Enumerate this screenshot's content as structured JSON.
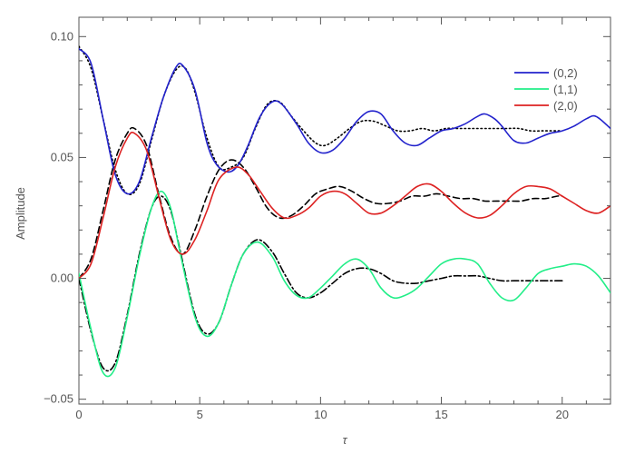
{
  "chart_data": {
    "type": "line",
    "xlabel": "τ",
    "ylabel": "Amplitude",
    "xlim": [
      0,
      22
    ],
    "ylim": [
      -0.052,
      0.108
    ],
    "x_ticks": [
      0,
      5,
      10,
      15,
      20
    ],
    "x_tick_labels": [
      "0",
      "5",
      "10",
      "15",
      "20"
    ],
    "y_ticks": [
      -0.05,
      0.0,
      0.05,
      0.1
    ],
    "y_tick_labels": [
      "−0.05",
      "0.00",
      "0.05",
      "0.10"
    ],
    "grid": false,
    "legend_position": "top-right",
    "series": [
      {
        "name": "(0,2)",
        "color": "#2222cc",
        "style": "solid",
        "points": [
          [
            0,
            0.095
          ],
          [
            0.5,
            0.089
          ],
          [
            1,
            0.066
          ],
          [
            1.5,
            0.043
          ],
          [
            2,
            0.035
          ],
          [
            2.5,
            0.04
          ],
          [
            3,
            0.058
          ],
          [
            3.5,
            0.075
          ],
          [
            4,
            0.087
          ],
          [
            4.3,
            0.088
          ],
          [
            4.8,
            0.078
          ],
          [
            5.3,
            0.056
          ],
          [
            5.7,
            0.047
          ],
          [
            6.2,
            0.044
          ],
          [
            6.6,
            0.047
          ],
          [
            7,
            0.055
          ],
          [
            7.5,
            0.067
          ],
          [
            8,
            0.073
          ],
          [
            8.4,
            0.072
          ],
          [
            9,
            0.064
          ],
          [
            9.5,
            0.056
          ],
          [
            10,
            0.052
          ],
          [
            10.5,
            0.053
          ],
          [
            11,
            0.058
          ],
          [
            11.5,
            0.065
          ],
          [
            12,
            0.069
          ],
          [
            12.5,
            0.068
          ],
          [
            13,
            0.061
          ],
          [
            13.5,
            0.056
          ],
          [
            14,
            0.055
          ],
          [
            14.5,
            0.058
          ],
          [
            15,
            0.061
          ],
          [
            15.5,
            0.062
          ],
          [
            16,
            0.064
          ],
          [
            16.5,
            0.067
          ],
          [
            16.8,
            0.068
          ],
          [
            17.2,
            0.066
          ],
          [
            17.5,
            0.063
          ],
          [
            18,
            0.057
          ],
          [
            18.5,
            0.056
          ],
          [
            19,
            0.058
          ],
          [
            19.5,
            0.06
          ],
          [
            20,
            0.061
          ],
          [
            20.5,
            0.063
          ],
          [
            21,
            0.066
          ],
          [
            21.4,
            0.067
          ],
          [
            22,
            0.062
          ]
        ]
      },
      {
        "name": "(1,1)",
        "color": "#22ee88",
        "style": "solid",
        "points": [
          [
            0,
            0.002
          ],
          [
            0.5,
            -0.021
          ],
          [
            1,
            -0.039
          ],
          [
            1.5,
            -0.037
          ],
          [
            2,
            -0.016
          ],
          [
            2.5,
            0.009
          ],
          [
            3,
            0.029
          ],
          [
            3.4,
            0.036
          ],
          [
            3.8,
            0.029
          ],
          [
            4.2,
            0.01
          ],
          [
            4.8,
            -0.016
          ],
          [
            5.3,
            -0.024
          ],
          [
            5.8,
            -0.018
          ],
          [
            6.3,
            -0.003
          ],
          [
            6.8,
            0.01
          ],
          [
            7.4,
            0.015
          ],
          [
            8,
            0.009
          ],
          [
            8.5,
            -0.001
          ],
          [
            9,
            -0.007
          ],
          [
            9.5,
            -0.008
          ],
          [
            10,
            -0.004
          ],
          [
            10.5,
            0.001
          ],
          [
            11,
            0.006
          ],
          [
            11.5,
            0.008
          ],
          [
            12,
            0.004
          ],
          [
            12.5,
            -0.004
          ],
          [
            13,
            -0.008
          ],
          [
            13.5,
            -0.007
          ],
          [
            14,
            -0.004
          ],
          [
            14.5,
            0.001
          ],
          [
            15,
            0.006
          ],
          [
            15.5,
            0.008
          ],
          [
            16,
            0.008
          ],
          [
            16.5,
            0.006
          ],
          [
            17,
            -0.002
          ],
          [
            17.5,
            -0.008
          ],
          [
            18,
            -0.009
          ],
          [
            18.5,
            -0.004
          ],
          [
            19,
            0.002
          ],
          [
            19.5,
            0.004
          ],
          [
            20,
            0.005
          ],
          [
            20.5,
            0.006
          ],
          [
            21,
            0.005
          ],
          [
            21.5,
            0.001
          ],
          [
            22,
            -0.006
          ]
        ]
      },
      {
        "name": "(2,0)",
        "color": "#dd2222",
        "style": "solid",
        "points": [
          [
            0,
            0.0
          ],
          [
            0.5,
            0.006
          ],
          [
            1,
            0.025
          ],
          [
            1.5,
            0.046
          ],
          [
            2,
            0.058
          ],
          [
            2.3,
            0.06
          ],
          [
            2.8,
            0.053
          ],
          [
            3.3,
            0.034
          ],
          [
            3.8,
            0.016
          ],
          [
            4.3,
            0.01
          ],
          [
            4.8,
            0.016
          ],
          [
            5.3,
            0.028
          ],
          [
            5.8,
            0.041
          ],
          [
            6.5,
            0.046
          ],
          [
            7,
            0.043
          ],
          [
            7.5,
            0.036
          ],
          [
            8,
            0.029
          ],
          [
            8.5,
            0.025
          ],
          [
            9,
            0.026
          ],
          [
            9.5,
            0.029
          ],
          [
            10,
            0.034
          ],
          [
            10.5,
            0.036
          ],
          [
            11,
            0.035
          ],
          [
            11.5,
            0.031
          ],
          [
            12,
            0.027
          ],
          [
            12.5,
            0.027
          ],
          [
            13,
            0.03
          ],
          [
            13.5,
            0.034
          ],
          [
            14,
            0.038
          ],
          [
            14.5,
            0.039
          ],
          [
            15,
            0.036
          ],
          [
            15.5,
            0.031
          ],
          [
            16,
            0.027
          ],
          [
            16.5,
            0.025
          ],
          [
            17,
            0.026
          ],
          [
            17.5,
            0.03
          ],
          [
            18,
            0.035
          ],
          [
            18.5,
            0.038
          ],
          [
            19,
            0.038
          ],
          [
            19.5,
            0.037
          ],
          [
            20,
            0.034
          ],
          [
            20.5,
            0.031
          ],
          [
            21,
            0.028
          ],
          [
            21.5,
            0.027
          ],
          [
            22,
            0.03
          ]
        ]
      },
      {
        "color": "#000000",
        "style": "dotted",
        "points": [
          [
            0,
            0.096
          ],
          [
            0.5,
            0.087
          ],
          [
            1,
            0.066
          ],
          [
            1.5,
            0.045
          ],
          [
            2,
            0.035
          ],
          [
            2.5,
            0.039
          ],
          [
            3,
            0.057
          ],
          [
            3.5,
            0.075
          ],
          [
            4,
            0.086
          ],
          [
            4.4,
            0.087
          ],
          [
            4.8,
            0.077
          ],
          [
            5.3,
            0.058
          ],
          [
            5.8,
            0.046
          ],
          [
            6.3,
            0.046
          ],
          [
            6.8,
            0.05
          ],
          [
            7.3,
            0.062
          ],
          [
            7.8,
            0.072
          ],
          [
            8.3,
            0.073
          ],
          [
            8.8,
            0.067
          ],
          [
            9.3,
            0.061
          ],
          [
            9.8,
            0.056
          ],
          [
            10.2,
            0.055
          ],
          [
            10.7,
            0.058
          ],
          [
            11.2,
            0.062
          ],
          [
            11.7,
            0.065
          ],
          [
            12.2,
            0.065
          ],
          [
            12.7,
            0.063
          ],
          [
            13.2,
            0.061
          ],
          [
            13.7,
            0.061
          ],
          [
            14.2,
            0.062
          ],
          [
            14.7,
            0.061
          ],
          [
            15.2,
            0.062
          ],
          [
            15.7,
            0.062
          ],
          [
            16.2,
            0.062
          ],
          [
            16.7,
            0.062
          ],
          [
            17.2,
            0.062
          ],
          [
            17.7,
            0.062
          ],
          [
            18.2,
            0.062
          ],
          [
            18.7,
            0.061
          ],
          [
            19.2,
            0.061
          ],
          [
            19.7,
            0.061
          ],
          [
            20,
            0.061
          ]
        ]
      },
      {
        "color": "#000000",
        "style": "dashed",
        "points": [
          [
            0,
            0.0
          ],
          [
            0.5,
            0.008
          ],
          [
            1,
            0.028
          ],
          [
            1.5,
            0.049
          ],
          [
            2,
            0.06
          ],
          [
            2.3,
            0.062
          ],
          [
            2.8,
            0.055
          ],
          [
            3.3,
            0.035
          ],
          [
            3.8,
            0.017
          ],
          [
            4.3,
            0.01
          ],
          [
            4.8,
            0.02
          ],
          [
            5.3,
            0.034
          ],
          [
            5.8,
            0.045
          ],
          [
            6.3,
            0.049
          ],
          [
            6.8,
            0.046
          ],
          [
            7.3,
            0.038
          ],
          [
            7.8,
            0.029
          ],
          [
            8.3,
            0.025
          ],
          [
            8.8,
            0.026
          ],
          [
            9.3,
            0.03
          ],
          [
            9.8,
            0.035
          ],
          [
            10.3,
            0.037
          ],
          [
            10.8,
            0.038
          ],
          [
            11.3,
            0.036
          ],
          [
            11.8,
            0.033
          ],
          [
            12.3,
            0.031
          ],
          [
            12.8,
            0.031
          ],
          [
            13.3,
            0.032
          ],
          [
            13.8,
            0.034
          ],
          [
            14.3,
            0.034
          ],
          [
            14.8,
            0.035
          ],
          [
            15.3,
            0.034
          ],
          [
            15.8,
            0.033
          ],
          [
            16.3,
            0.033
          ],
          [
            16.8,
            0.032
          ],
          [
            17.3,
            0.032
          ],
          [
            17.8,
            0.032
          ],
          [
            18.3,
            0.032
          ],
          [
            18.8,
            0.033
          ],
          [
            19.3,
            0.033
          ],
          [
            19.8,
            0.034
          ],
          [
            20,
            0.034
          ]
        ]
      },
      {
        "color": "#000000",
        "style": "dashdot",
        "points": [
          [
            0,
            0.0
          ],
          [
            0.5,
            -0.022
          ],
          [
            1,
            -0.037
          ],
          [
            1.5,
            -0.035
          ],
          [
            2,
            -0.015
          ],
          [
            2.5,
            0.01
          ],
          [
            3,
            0.029
          ],
          [
            3.4,
            0.034
          ],
          [
            3.8,
            0.028
          ],
          [
            4.2,
            0.011
          ],
          [
            4.8,
            -0.015
          ],
          [
            5.3,
            -0.023
          ],
          [
            5.8,
            -0.018
          ],
          [
            6.3,
            -0.003
          ],
          [
            6.8,
            0.01
          ],
          [
            7.4,
            0.016
          ],
          [
            8,
            0.011
          ],
          [
            8.5,
            0.002
          ],
          [
            9,
            -0.006
          ],
          [
            9.5,
            -0.008
          ],
          [
            10,
            -0.006
          ],
          [
            10.5,
            -0.002
          ],
          [
            11,
            0.002
          ],
          [
            11.5,
            0.004
          ],
          [
            12,
            0.004
          ],
          [
            12.5,
            0.002
          ],
          [
            13,
            -0.001
          ],
          [
            13.5,
            -0.002
          ],
          [
            14,
            -0.002
          ],
          [
            14.5,
            -0.001
          ],
          [
            15,
            0.0
          ],
          [
            15.5,
            0.001
          ],
          [
            16,
            0.001
          ],
          [
            16.5,
            0.001
          ],
          [
            17,
            0.0
          ],
          [
            17.5,
            -0.001
          ],
          [
            18,
            -0.001
          ],
          [
            18.5,
            -0.001
          ],
          [
            19,
            -0.001
          ],
          [
            19.5,
            -0.001
          ],
          [
            20,
            -0.001
          ]
        ]
      }
    ]
  }
}
